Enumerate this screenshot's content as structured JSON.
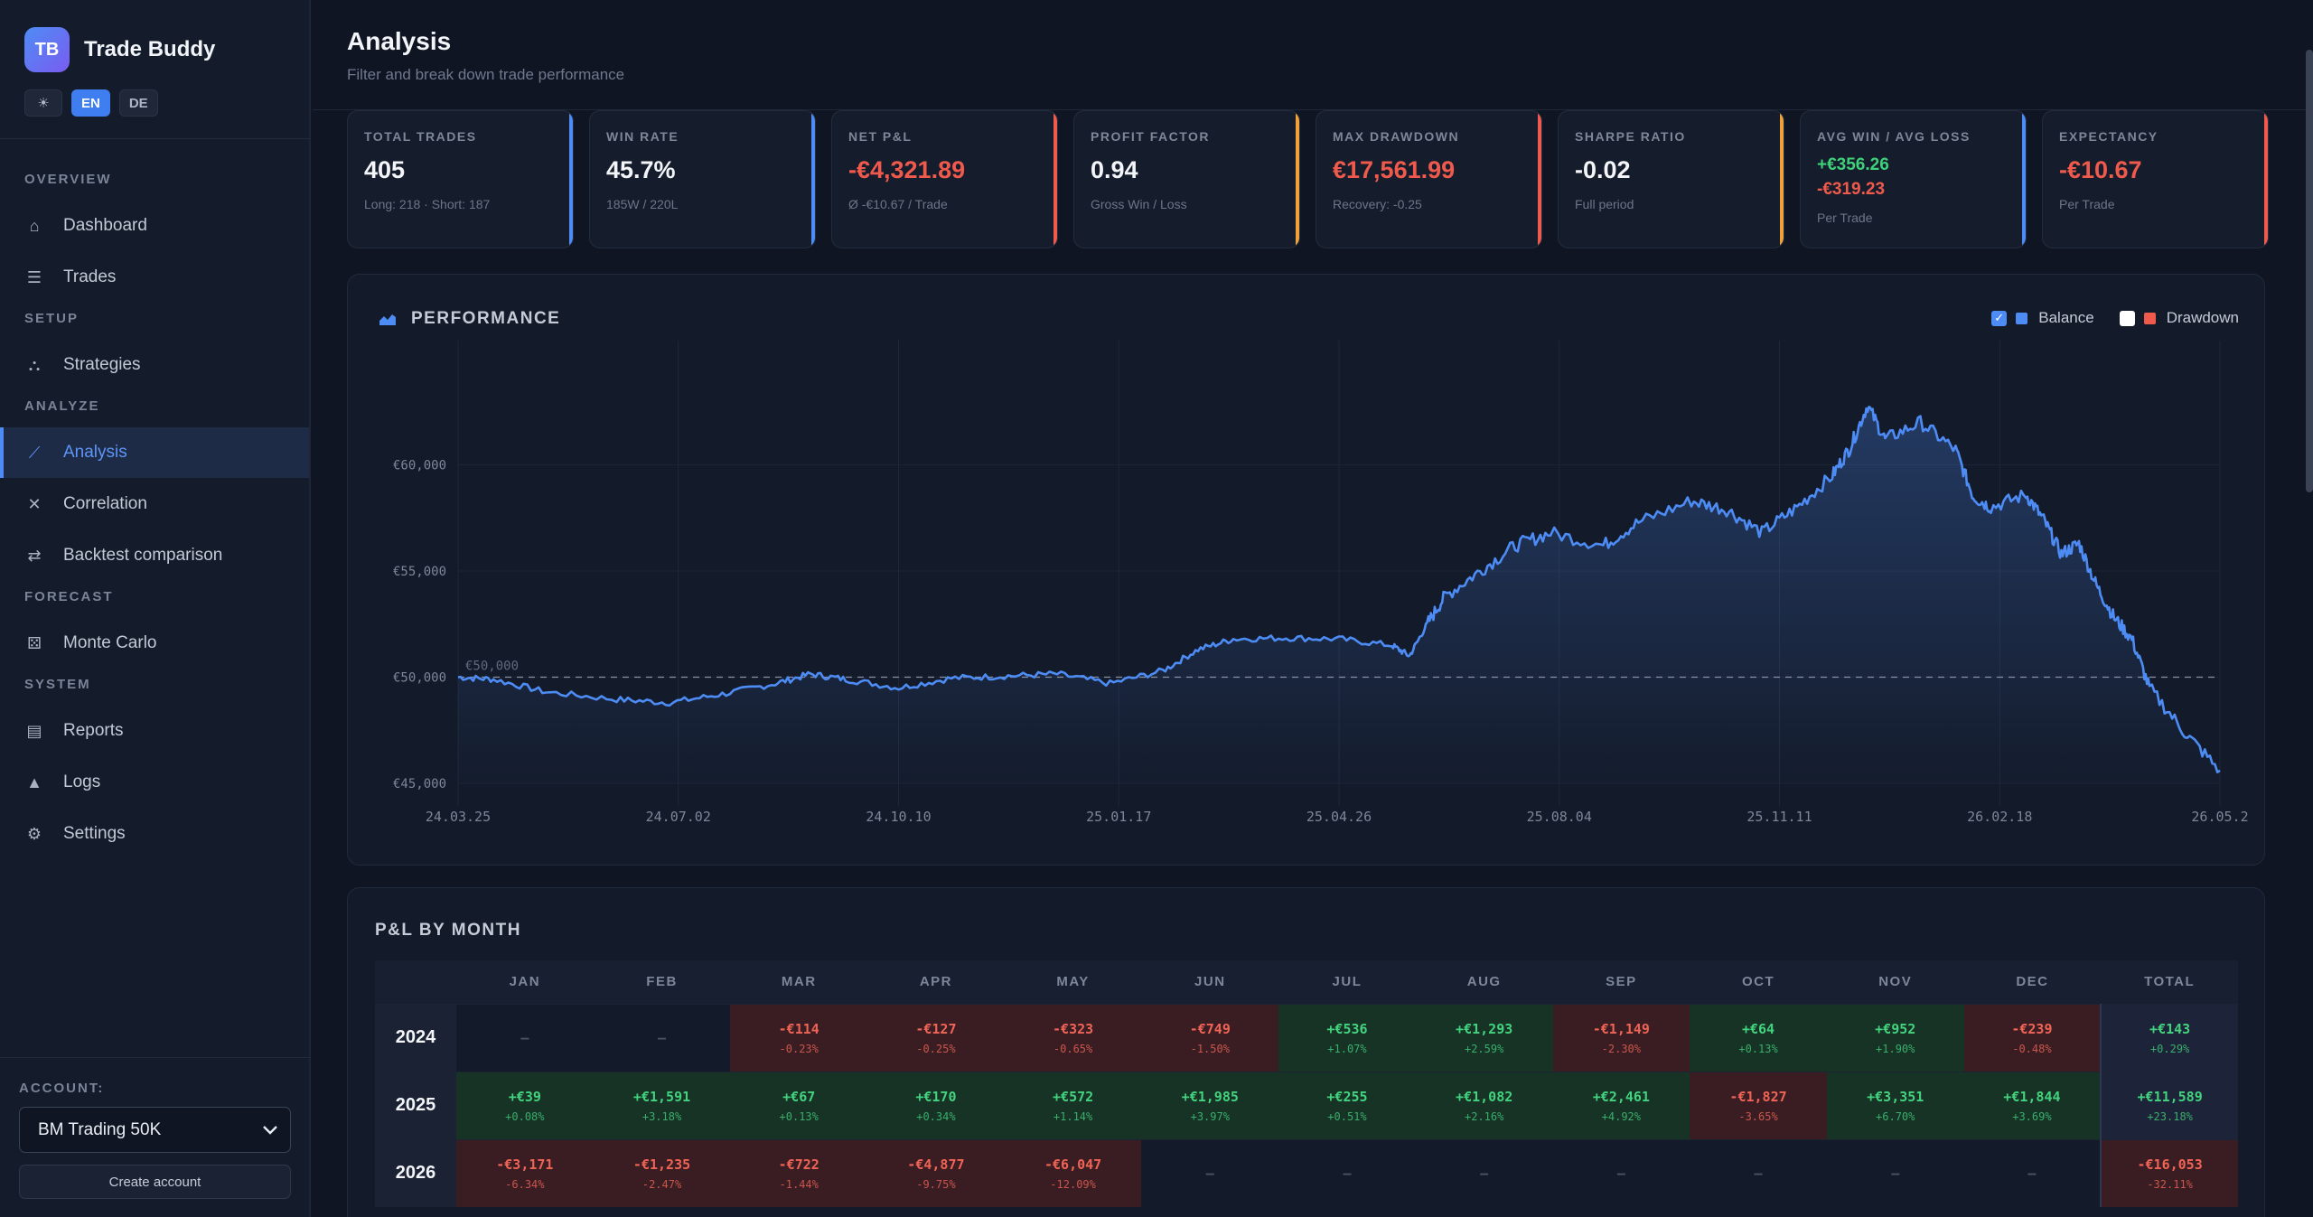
{
  "brand": {
    "logo": "TB",
    "name": "Trade Buddy"
  },
  "languages": [
    {
      "label": "☀",
      "active": false
    },
    {
      "label": "EN",
      "active": true
    },
    {
      "label": "DE",
      "active": false
    }
  ],
  "nav": {
    "sections": [
      {
        "title": "OVERVIEW",
        "items": [
          {
            "label": "Dashboard",
            "icon": "home-icon"
          },
          {
            "label": "Trades",
            "icon": "list-icon"
          }
        ]
      },
      {
        "title": "SETUP",
        "items": [
          {
            "label": "Strategies",
            "icon": "hierarchy-icon"
          }
        ]
      },
      {
        "title": "ANALYZE",
        "items": [
          {
            "label": "Analysis",
            "icon": "line-chart-icon",
            "active": true
          },
          {
            "label": "Correlation",
            "icon": "correlation-icon"
          },
          {
            "label": "Backtest comparison",
            "icon": "swap-icon"
          }
        ]
      },
      {
        "title": "FORECAST",
        "items": [
          {
            "label": "Monte Carlo",
            "icon": "dice-icon"
          }
        ]
      },
      {
        "title": "SYSTEM",
        "items": [
          {
            "label": "Reports",
            "icon": "document-icon"
          },
          {
            "label": "Logs",
            "icon": "warning-icon"
          },
          {
            "label": "Settings",
            "icon": "gear-icon"
          }
        ]
      }
    ]
  },
  "account": {
    "label": "ACCOUNT:",
    "selected": "BM Trading 50K",
    "create_label": "Create account"
  },
  "header": {
    "title": "Analysis",
    "subtitle": "Filter and break down trade performance"
  },
  "kpis": [
    {
      "label": "TOTAL TRADES",
      "value": "405",
      "sub": "Long: 218 · Short: 187",
      "tone": "",
      "accent": "#4e8cf5"
    },
    {
      "label": "WIN RATE",
      "value": "45.7%",
      "sub": "185W / 220L",
      "tone": "",
      "accent": "#4e8cf5"
    },
    {
      "label": "NET P&L",
      "value": "-€4,321.89",
      "sub": "Ø -€10.67 / Trade",
      "tone": "neg",
      "accent": "#ef5a4d"
    },
    {
      "label": "PROFIT FACTOR",
      "value": "0.94",
      "sub": "Gross Win / Loss",
      "tone": "",
      "accent": "#f0a23a"
    },
    {
      "label": "MAX DRAWDOWN",
      "value": "€17,561.99",
      "sub": "Recovery: -0.25",
      "tone": "neg",
      "accent": "#ef5a4d"
    },
    {
      "label": "SHARPE RATIO",
      "value": "-0.02",
      "sub": "Full period",
      "tone": "",
      "accent": "#f0a23a"
    },
    {
      "label": "AVG WIN / AVG LOSS",
      "value_win": "+€356.26",
      "value_loss": "-€319.23",
      "sub": "Per Trade",
      "tone": "dual",
      "accent": "#4e8cf5"
    },
    {
      "label": "EXPECTANCY",
      "value": "-€10.67",
      "sub": "Per Trade",
      "tone": "neg",
      "accent": "#ef5a4d"
    }
  ],
  "performance": {
    "title": "PERFORMANCE",
    "legend": [
      {
        "label": "Balance",
        "checked": true,
        "color": "#4e8cf5"
      },
      {
        "label": "Drawdown",
        "checked": false,
        "color": "#ef5a4d"
      }
    ]
  },
  "chart_data": {
    "type": "line",
    "title": "",
    "series": [
      {
        "name": "Balance",
        "color": "#4e8cf5"
      }
    ],
    "x_ticks": [
      "24.03.25",
      "24.07.02",
      "24.10.10",
      "25.01.17",
      "25.04.26",
      "25.08.04",
      "25.11.11",
      "26.02.18",
      "26.05.2"
    ],
    "y_ticks": [
      "€45,000",
      "€50,000",
      "€55,000",
      "€60,000"
    ],
    "ylim": [
      45000,
      65000
    ],
    "baseline": {
      "label": "€50,000",
      "value": 50000
    },
    "points": [
      [
        0,
        50000
      ],
      [
        0.02,
        49900
      ],
      [
        0.05,
        49300
      ],
      [
        0.09,
        48950
      ],
      [
        0.12,
        48800
      ],
      [
        0.15,
        49200
      ],
      [
        0.18,
        49700
      ],
      [
        0.2,
        50150
      ],
      [
        0.22,
        49900
      ],
      [
        0.25,
        49500
      ],
      [
        0.28,
        49950
      ],
      [
        0.31,
        50050
      ],
      [
        0.34,
        50150
      ],
      [
        0.37,
        49700
      ],
      [
        0.4,
        50300
      ],
      [
        0.42,
        51300
      ],
      [
        0.44,
        51800
      ],
      [
        0.47,
        51850
      ],
      [
        0.5,
        51800
      ],
      [
        0.53,
        51500
      ],
      [
        0.54,
        51000
      ],
      [
        0.55,
        52500
      ],
      [
        0.56,
        53800
      ],
      [
        0.58,
        55000
      ],
      [
        0.6,
        56200
      ],
      [
        0.62,
        56800
      ],
      [
        0.65,
        56200
      ],
      [
        0.67,
        57300
      ],
      [
        0.7,
        58300
      ],
      [
        0.72,
        57900
      ],
      [
        0.74,
        56800
      ],
      [
        0.76,
        58000
      ],
      [
        0.78,
        59500
      ],
      [
        0.79,
        60800
      ],
      [
        0.8,
        62800
      ],
      [
        0.81,
        61200
      ],
      [
        0.83,
        62000
      ],
      [
        0.85,
        60700
      ],
      [
        0.86,
        58500
      ],
      [
        0.87,
        58000
      ],
      [
        0.89,
        58600
      ],
      [
        0.9,
        57400
      ],
      [
        0.91,
        55800
      ],
      [
        0.92,
        56300
      ],
      [
        0.93,
        54300
      ],
      [
        0.94,
        52800
      ],
      [
        0.95,
        51800
      ],
      [
        0.96,
        49500
      ],
      [
        0.98,
        47400
      ],
      [
        1.0,
        45600
      ]
    ]
  },
  "pnl_by_month": {
    "title": "P&L BY MONTH",
    "columns": [
      "JAN",
      "FEB",
      "MAR",
      "APR",
      "MAY",
      "JUN",
      "JUL",
      "AUG",
      "SEP",
      "OCT",
      "NOV",
      "DEC",
      "TOTAL"
    ],
    "rows": [
      {
        "year": "2024",
        "cells": [
          {
            "v": "–"
          },
          {
            "v": "–"
          },
          {
            "v": "-€114",
            "p": "-0.23%",
            "t": "neg"
          },
          {
            "v": "-€127",
            "p": "-0.25%",
            "t": "neg"
          },
          {
            "v": "-€323",
            "p": "-0.65%",
            "t": "neg"
          },
          {
            "v": "-€749",
            "p": "-1.50%",
            "t": "neg"
          },
          {
            "v": "+€536",
            "p": "+1.07%",
            "t": "pos"
          },
          {
            "v": "+€1,293",
            "p": "+2.59%",
            "t": "pos"
          },
          {
            "v": "-€1,149",
            "p": "-2.30%",
            "t": "neg"
          },
          {
            "v": "+€64",
            "p": "+0.13%",
            "t": "pos"
          },
          {
            "v": "+€952",
            "p": "+1.90%",
            "t": "pos"
          },
          {
            "v": "-€239",
            "p": "-0.48%",
            "t": "neg"
          },
          {
            "v": "+€143",
            "p": "+0.29%",
            "t": "pos"
          }
        ]
      },
      {
        "year": "2025",
        "cells": [
          {
            "v": "+€39",
            "p": "+0.08%",
            "t": "pos"
          },
          {
            "v": "+€1,591",
            "p": "+3.18%",
            "t": "pos"
          },
          {
            "v": "+€67",
            "p": "+0.13%",
            "t": "pos"
          },
          {
            "v": "+€170",
            "p": "+0.34%",
            "t": "pos"
          },
          {
            "v": "+€572",
            "p": "+1.14%",
            "t": "pos"
          },
          {
            "v": "+€1,985",
            "p": "+3.97%",
            "t": "pos"
          },
          {
            "v": "+€255",
            "p": "+0.51%",
            "t": "pos"
          },
          {
            "v": "+€1,082",
            "p": "+2.16%",
            "t": "pos"
          },
          {
            "v": "+€2,461",
            "p": "+4.92%",
            "t": "pos"
          },
          {
            "v": "-€1,827",
            "p": "-3.65%",
            "t": "neg"
          },
          {
            "v": "+€3,351",
            "p": "+6.70%",
            "t": "pos"
          },
          {
            "v": "+€1,844",
            "p": "+3.69%",
            "t": "pos"
          },
          {
            "v": "+€11,589",
            "p": "+23.18%",
            "t": "pos"
          }
        ]
      },
      {
        "year": "2026",
        "cells": [
          {
            "v": "-€3,171",
            "p": "-6.34%",
            "t": "neg"
          },
          {
            "v": "-€1,235",
            "p": "-2.47%",
            "t": "neg"
          },
          {
            "v": "-€722",
            "p": "-1.44%",
            "t": "neg"
          },
          {
            "v": "-€4,877",
            "p": "-9.75%",
            "t": "neg"
          },
          {
            "v": "-€6,047",
            "p": "-12.09%",
            "t": "neg"
          },
          {
            "v": "–"
          },
          {
            "v": "–"
          },
          {
            "v": "–"
          },
          {
            "v": "–"
          },
          {
            "v": "–"
          },
          {
            "v": "–"
          },
          {
            "v": "–"
          },
          {
            "v": "-€16,053",
            "p": "-32.11%",
            "t": "neg"
          }
        ]
      }
    ]
  }
}
